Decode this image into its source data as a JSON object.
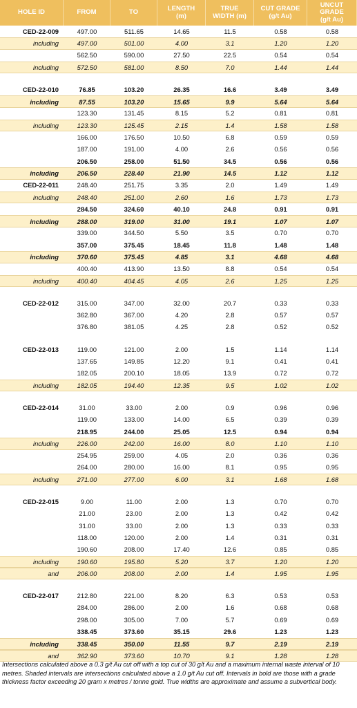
{
  "header": {
    "columns": [
      [
        "HOLE ID"
      ],
      [
        "FROM"
      ],
      [
        "TO"
      ],
      [
        "LENGTH",
        "(m)"
      ],
      [
        "TRUE",
        "WIDTH (m)"
      ],
      [
        "CUT GRADE",
        "(g/t Au)"
      ],
      [
        "UNCUT",
        "GRADE",
        "(g/t Au)"
      ]
    ]
  },
  "groups": [
    {
      "hole": "CED-22-009",
      "rows": [
        {
          "cells": [
            "497.00",
            "511.65",
            "14.65",
            "11.5",
            "0.58",
            "0.58"
          ]
        },
        {
          "label": "including",
          "italic": true,
          "shaded": true,
          "cells": [
            "497.00",
            "501.00",
            "4.00",
            "3.1",
            "1.20",
            "1.20"
          ]
        },
        {
          "cells": [
            "562.50",
            "590.00",
            "27.50",
            "22.5",
            "0.54",
            "0.54"
          ]
        },
        {
          "label": "including",
          "italic": true,
          "shaded": true,
          "cells": [
            "572.50",
            "581.00",
            "8.50",
            "7.0",
            "1.44",
            "1.44"
          ]
        }
      ]
    },
    {
      "hole": "CED-22-010",
      "rows": [
        {
          "bold": true,
          "cells": [
            "76.85",
            "103.20",
            "26.35",
            "16.6",
            "3.49",
            "3.49"
          ]
        },
        {
          "label": "including",
          "italic": true,
          "bold": true,
          "shaded": true,
          "cells": [
            "87.55",
            "103.20",
            "15.65",
            "9.9",
            "5.64",
            "5.64"
          ]
        },
        {
          "cells": [
            "123.30",
            "131.45",
            "8.15",
            "5.2",
            "0.81",
            "0.81"
          ]
        },
        {
          "label": "including",
          "italic": true,
          "shaded": true,
          "cells": [
            "123.30",
            "125.45",
            "2.15",
            "1.4",
            "1.58",
            "1.58"
          ]
        },
        {
          "cells": [
            "166.00",
            "176.50",
            "10.50",
            "6.8",
            "0.59",
            "0.59"
          ]
        },
        {
          "cells": [
            "187.00",
            "191.00",
            "4.00",
            "2.6",
            "0.56",
            "0.56"
          ]
        },
        {
          "bold": true,
          "cells": [
            "206.50",
            "258.00",
            "51.50",
            "34.5",
            "0.56",
            "0.56"
          ]
        },
        {
          "label": "including",
          "italic": true,
          "bold": true,
          "shaded": true,
          "cells": [
            "206.50",
            "228.40",
            "21.90",
            "14.5",
            "1.12",
            "1.12"
          ]
        }
      ]
    },
    {
      "hole": "CED-22-011",
      "joined": true,
      "rows": [
        {
          "cells": [
            "248.40",
            "251.75",
            "3.35",
            "2.0",
            "1.49",
            "1.49"
          ]
        },
        {
          "label": "including",
          "italic": true,
          "shaded": true,
          "cells": [
            "248.40",
            "251.00",
            "2.60",
            "1.6",
            "1.73",
            "1.73"
          ]
        },
        {
          "bold": true,
          "cells": [
            "284.50",
            "324.60",
            "40.10",
            "24.8",
            "0.91",
            "0.91"
          ]
        },
        {
          "label": "including",
          "italic": true,
          "bold": true,
          "shaded": true,
          "cells": [
            "288.00",
            "319.00",
            "31.00",
            "19.1",
            "1.07",
            "1.07"
          ]
        },
        {
          "cells": [
            "339.00",
            "344.50",
            "5.50",
            "3.5",
            "0.70",
            "0.70"
          ]
        },
        {
          "bold": true,
          "cells": [
            "357.00",
            "375.45",
            "18.45",
            "11.8",
            "1.48",
            "1.48"
          ]
        },
        {
          "label": "including",
          "italic": true,
          "bold": true,
          "shaded": true,
          "cells": [
            "370.60",
            "375.45",
            "4.85",
            "3.1",
            "4.68",
            "4.68"
          ]
        },
        {
          "cells": [
            "400.40",
            "413.90",
            "13.50",
            "8.8",
            "0.54",
            "0.54"
          ]
        },
        {
          "label": "including",
          "italic": true,
          "shaded": true,
          "cells": [
            "400.40",
            "404.45",
            "4.05",
            "2.6",
            "1.25",
            "1.25"
          ]
        }
      ]
    },
    {
      "hole": "CED-22-012",
      "rows": [
        {
          "cells": [
            "315.00",
            "347.00",
            "32.00",
            "20.7",
            "0.33",
            "0.33"
          ]
        },
        {
          "cells": [
            "362.80",
            "367.00",
            "4.20",
            "2.8",
            "0.57",
            "0.57"
          ]
        },
        {
          "cells": [
            "376.80",
            "381.05",
            "4.25",
            "2.8",
            "0.52",
            "0.52"
          ]
        }
      ]
    },
    {
      "hole": "CED-22-013",
      "rows": [
        {
          "cells": [
            "119.00",
            "121.00",
            "2.00",
            "1.5",
            "1.14",
            "1.14"
          ]
        },
        {
          "cells": [
            "137.65",
            "149.85",
            "12.20",
            "9.1",
            "0.41",
            "0.41"
          ]
        },
        {
          "cells": [
            "182.05",
            "200.10",
            "18.05",
            "13.9",
            "0.72",
            "0.72"
          ]
        },
        {
          "label": "including",
          "italic": true,
          "shaded": true,
          "cells": [
            "182.05",
            "194.40",
            "12.35",
            "9.5",
            "1.02",
            "1.02"
          ]
        }
      ]
    },
    {
      "hole": "CED-22-014",
      "rows": [
        {
          "cells": [
            "31.00",
            "33.00",
            "2.00",
            "0.9",
            "0.96",
            "0.96"
          ]
        },
        {
          "cells": [
            "119.00",
            "133.00",
            "14.00",
            "6.5",
            "0.39",
            "0.39"
          ]
        },
        {
          "bold": true,
          "cells": [
            "218.95",
            "244.00",
            "25.05",
            "12.5",
            "0.94",
            "0.94"
          ]
        },
        {
          "label": "including",
          "italic": true,
          "shaded": true,
          "cells": [
            "226.00",
            "242.00",
            "16.00",
            "8.0",
            "1.10",
            "1.10"
          ]
        },
        {
          "cells": [
            "254.95",
            "259.00",
            "4.05",
            "2.0",
            "0.36",
            "0.36"
          ]
        },
        {
          "cells": [
            "264.00",
            "280.00",
            "16.00",
            "8.1",
            "0.95",
            "0.95"
          ]
        },
        {
          "label": "including",
          "italic": true,
          "shaded": true,
          "cells": [
            "271.00",
            "277.00",
            "6.00",
            "3.1",
            "1.68",
            "1.68"
          ]
        }
      ]
    },
    {
      "hole": "CED-22-015",
      "rows": [
        {
          "cells": [
            "9.00",
            "11.00",
            "2.00",
            "1.3",
            "0.70",
            "0.70"
          ]
        },
        {
          "cells": [
            "21.00",
            "23.00",
            "2.00",
            "1.3",
            "0.42",
            "0.42"
          ]
        },
        {
          "cells": [
            "31.00",
            "33.00",
            "2.00",
            "1.3",
            "0.33",
            "0.33"
          ]
        },
        {
          "cells": [
            "118.00",
            "120.00",
            "2.00",
            "1.4",
            "0.31",
            "0.31"
          ]
        },
        {
          "cells": [
            "190.60",
            "208.00",
            "17.40",
            "12.6",
            "0.85",
            "0.85"
          ]
        },
        {
          "label": "including",
          "italic": true,
          "shaded": true,
          "cells": [
            "190.60",
            "195.80",
            "5.20",
            "3.7",
            "1.20",
            "1.20"
          ]
        },
        {
          "label": "and",
          "italic": true,
          "shaded": true,
          "cells": [
            "206.00",
            "208.00",
            "2.00",
            "1.4",
            "1.95",
            "1.95"
          ]
        }
      ]
    },
    {
      "hole": "CED-22-017",
      "rows": [
        {
          "cells": [
            "212.80",
            "221.00",
            "8.20",
            "6.3",
            "0.53",
            "0.53"
          ]
        },
        {
          "cells": [
            "284.00",
            "286.00",
            "2.00",
            "1.6",
            "0.68",
            "0.68"
          ]
        },
        {
          "cells": [
            "298.00",
            "305.00",
            "7.00",
            "5.7",
            "0.69",
            "0.69"
          ]
        },
        {
          "bold": true,
          "cells": [
            "338.45",
            "373.60",
            "35.15",
            "29.6",
            "1.23",
            "1.23"
          ]
        },
        {
          "label": "including",
          "italic": true,
          "bold": true,
          "shaded": true,
          "cells": [
            "338.45",
            "350.00",
            "11.55",
            "9.7",
            "2.19",
            "2.19"
          ]
        },
        {
          "label": "and",
          "italic": true,
          "shaded": true,
          "cells": [
            "362.90",
            "373.60",
            "10.70",
            "9.1",
            "1.28",
            "1.28"
          ]
        }
      ]
    }
  ],
  "footnote": "Intersections calculated above a 0.3 g/t Au cut off with a top cut of 30 g/t Au and a maximum internal waste interval of 10 metres. Shaded intervals are intersections calculated above a 1.0 g/t Au cut off. Intervals in bold are those with a grade thickness factor exceeding 20 gram x metres / tonne gold. True widths are approximate and assume a subvertical body."
}
